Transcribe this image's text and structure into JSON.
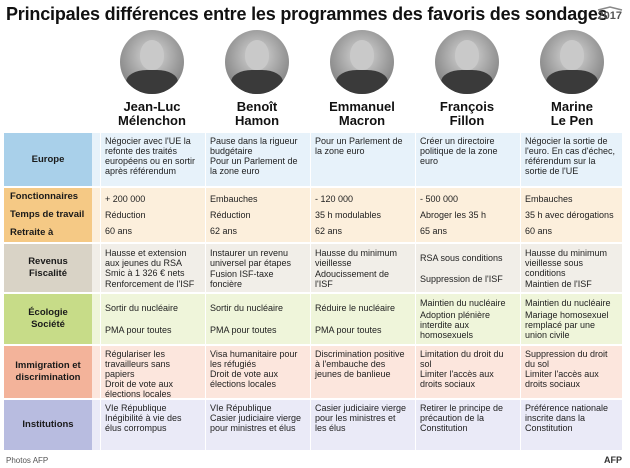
{
  "title": "Principales différences entre les programmes des favoris des sondages",
  "year": "2017",
  "credit": "Photos AFP",
  "agency": "AFP",
  "candidates": [
    {
      "first": "Jean-Luc",
      "last": "Mélenchon"
    },
    {
      "first": "Benoît",
      "last": "Hamon"
    },
    {
      "first": "Emmanuel",
      "last": "Macron"
    },
    {
      "first": "François",
      "last": "Fillon"
    },
    {
      "first": "Marine",
      "last": "Le Pen"
    }
  ],
  "colors": {
    "europe_label": "#a9d0ea",
    "europe_band": "#e7f2fa",
    "social_label": "#f5c985",
    "social_band": "#fcefdc",
    "revenus_label": "#d9d3c6",
    "revenus_band": "#f1eee8",
    "eco_label": "#c7dc88",
    "eco_band": "#eff5da",
    "immig_label": "#f3b39a",
    "immig_band": "#fce6dd",
    "inst_label": "#b8bce0",
    "inst_band": "#eaeaf7"
  },
  "rows": {
    "europe": {
      "labels": [
        "Europe"
      ],
      "cells": [
        "Négocier avec l'UE la refonte des traités européens ou en sortir après référendum",
        "Pause dans la rigueur budgétaire\nPour un Parlement de la zone euro",
        "Pour un Parlement de la zone euro",
        "Créer un directoire politique de la zone euro",
        "Négocier la sortie de l'euro. En cas d'échec, référendum sur la sortie de l'UE"
      ]
    },
    "social": {
      "labels": [
        "Fonctionnaires",
        "Temps de travail",
        "Retraite à"
      ],
      "cells": [
        [
          "+ 200 000",
          "Réduction",
          "60 ans"
        ],
        [
          "Embauches",
          "Réduction",
          "62 ans"
        ],
        [
          "- 120 000",
          "35 h modulables",
          "62 ans"
        ],
        [
          "- 500 000",
          "Abroger les 35 h",
          "65 ans"
        ],
        [
          "Embauches",
          "35 h avec dérogations",
          "60 ans"
        ]
      ]
    },
    "revenus": {
      "labels": [
        "Revenus",
        "Fiscalité"
      ],
      "cells": [
        [
          "Hausse et extension aux jeunes du RSA\nSmic à 1 326 € nets",
          "Renforcement de l'ISF"
        ],
        [
          "Instaurer un revenu universel par étapes",
          "Fusion ISF-taxe foncière"
        ],
        [
          "Hausse du minimum vieillesse",
          "Adoucissement de l'ISF"
        ],
        [
          "RSA sous conditions",
          "Suppression de l'ISF"
        ],
        [
          "Hausse du minimum vieillesse sous conditions",
          "Maintien de l'ISF"
        ]
      ]
    },
    "eco": {
      "labels": [
        "Écologie",
        "Société"
      ],
      "cells": [
        [
          "Sortir du nucléaire",
          "PMA pour toutes"
        ],
        [
          "Sortir du nucléaire",
          "PMA pour toutes"
        ],
        [
          "Réduire le nucléaire",
          "PMA pour toutes"
        ],
        [
          "Maintien du nucléaire",
          "Adoption plénière interdite aux homosexuels"
        ],
        [
          "Maintien du nucléaire",
          "Mariage homosexuel remplacé par une union civile"
        ]
      ]
    },
    "immig": {
      "labels": [
        "Immigration et discrimination"
      ],
      "cells": [
        "Régulariser les travailleurs sans papiers\nDroit de vote aux élections locales",
        "Visa humanitaire pour les réfugiés\nDroit de vote aux élections locales",
        "Discrimination positive à l'embauche des jeunes de banlieue",
        "Limitation du droit du sol\nLimiter l'accès aux droits sociaux",
        "Suppression du droit du sol\nLimiter l'accès aux droits sociaux"
      ]
    },
    "inst": {
      "labels": [
        "Institutions"
      ],
      "cells": [
        "VIe République\nInégibilité à vie des élus corrompus",
        "VIe République\nCasier judiciaire vierge pour ministres et élus",
        "Casier judiciaire vierge pour les ministres et les élus",
        "Retirer le principe de précaution de la Constitution",
        "Préférence nationale inscrite dans la Constitution"
      ]
    }
  }
}
